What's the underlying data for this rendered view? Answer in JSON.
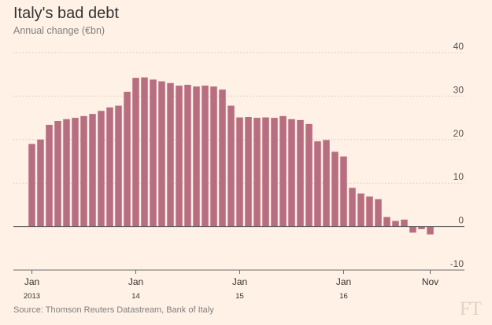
{
  "title": "Italy's bad debt",
  "subtitle": "Annual change (€bn)",
  "source": "Source: Thomson Reuters Datastream, Bank of Italy",
  "logo": "FT",
  "chart_data": {
    "type": "bar",
    "title": "Italy's bad debt",
    "ylabel": "Annual change (€bn)",
    "xlabel": "",
    "ylim": [
      -10,
      40
    ],
    "yticks": [
      -10,
      0,
      10,
      20,
      30,
      40
    ],
    "grid": true,
    "bar_color": "#b86e81",
    "x_tick_labels": [
      {
        "month": "Jan",
        "year": "2013",
        "index": 0
      },
      {
        "month": "Jan",
        "year": "14",
        "index": 12
      },
      {
        "month": "Jan",
        "year": "15",
        "index": 24
      },
      {
        "month": "Jan",
        "year": "16",
        "index": 36
      },
      {
        "month": "Nov",
        "year": "",
        "index": 46
      }
    ],
    "categories": [
      "Jan 2013",
      "Feb 2013",
      "Mar 2013",
      "Apr 2013",
      "May 2013",
      "Jun 2013",
      "Jul 2013",
      "Aug 2013",
      "Sep 2013",
      "Oct 2013",
      "Nov 2013",
      "Dec 2013",
      "Jan 2014",
      "Feb 2014",
      "Mar 2014",
      "Apr 2014",
      "May 2014",
      "Jun 2014",
      "Jul 2014",
      "Aug 2014",
      "Sep 2014",
      "Oct 2014",
      "Nov 2014",
      "Dec 2014",
      "Jan 2015",
      "Feb 2015",
      "Mar 2015",
      "Apr 2015",
      "May 2015",
      "Jun 2015",
      "Jul 2015",
      "Aug 2015",
      "Sep 2015",
      "Oct 2015",
      "Nov 2015",
      "Dec 2015",
      "Jan 2016",
      "Feb 2016",
      "Mar 2016",
      "Apr 2016",
      "May 2016",
      "Jun 2016",
      "Jul 2016",
      "Aug 2016",
      "Sep 2016",
      "Oct 2016",
      "Nov 2016"
    ],
    "values": [
      19.0,
      20.0,
      23.4,
      24.3,
      24.7,
      25.0,
      25.4,
      25.9,
      26.6,
      27.4,
      27.8,
      31.0,
      34.2,
      34.3,
      33.8,
      33.4,
      33.0,
      32.4,
      32.6,
      32.2,
      32.4,
      32.2,
      31.5,
      27.8,
      25.1,
      25.2,
      25.0,
      25.1,
      25.0,
      25.4,
      24.7,
      24.5,
      23.6,
      19.6,
      19.9,
      17.2,
      16.1,
      8.9,
      7.6,
      6.9,
      6.3,
      2.2,
      1.3,
      1.6,
      -1.4,
      -0.6,
      -1.8
    ]
  }
}
